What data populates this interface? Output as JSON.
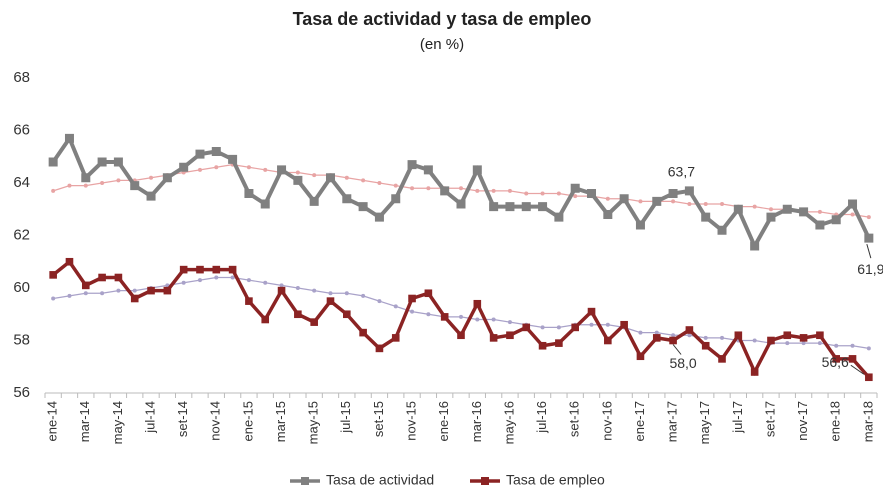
{
  "chart_data": {
    "type": "line",
    "title": "Tasa de actividad y tasa de empleo",
    "subtitle": "(en %)",
    "categories": [
      "ene-14",
      null,
      "mar-14",
      null,
      "may-14",
      null,
      "jul-14",
      null,
      "set-14",
      null,
      "nov-14",
      null,
      "ene-15",
      null,
      "mar-15",
      null,
      "may-15",
      null,
      "jul-15",
      null,
      "set-15",
      null,
      "nov-15",
      null,
      "ene-16",
      null,
      "mar-16",
      null,
      "may-16",
      null,
      "jul-16",
      null,
      "set-16",
      null,
      "nov-16",
      null,
      "ene-17",
      null,
      "mar-17",
      null,
      "may-17",
      null,
      "jul-17",
      null,
      "set-17",
      null,
      "nov-17",
      null,
      "ene-18",
      null,
      "mar-18"
    ],
    "series": [
      {
        "name": "Tasa de actividad",
        "color": "#808080",
        "marker": "square",
        "values": [
          64.8,
          65.7,
          64.2,
          64.8,
          64.8,
          63.9,
          63.5,
          64.2,
          64.6,
          65.1,
          65.2,
          64.9,
          63.6,
          63.2,
          64.5,
          64.1,
          63.3,
          64.2,
          63.4,
          63.1,
          62.7,
          63.4,
          64.7,
          64.5,
          63.7,
          63.2,
          64.5,
          63.1,
          63.1,
          63.1,
          63.1,
          62.7,
          63.8,
          63.6,
          62.8,
          63.4,
          62.4,
          63.3,
          63.6,
          63.7,
          62.7,
          62.2,
          63.0,
          61.6,
          62.7,
          63.0,
          62.9,
          62.4,
          62.6,
          63.2,
          61.9
        ],
        "value_labels": [
          null,
          null,
          null,
          null,
          null,
          null,
          null,
          null,
          null,
          null,
          null,
          null,
          null,
          null,
          null,
          null,
          null,
          null,
          null,
          null,
          null,
          null,
          null,
          null,
          null,
          null,
          null,
          null,
          null,
          null,
          null,
          null,
          null,
          null,
          null,
          null,
          null,
          null,
          null,
          "63,7",
          null,
          null,
          null,
          null,
          null,
          null,
          null,
          null,
          null,
          null,
          "61,9"
        ]
      },
      {
        "name": "Tasa de empleo",
        "color": "#8b2323",
        "marker": "square",
        "values": [
          60.5,
          61.0,
          60.1,
          60.4,
          60.4,
          59.6,
          59.9,
          59.9,
          60.7,
          60.7,
          60.7,
          60.7,
          59.5,
          58.8,
          59.9,
          59.0,
          58.7,
          59.5,
          59.0,
          58.3,
          57.7,
          58.1,
          59.6,
          59.8,
          58.9,
          58.2,
          59.4,
          58.1,
          58.2,
          58.5,
          57.8,
          57.9,
          58.5,
          59.1,
          58.0,
          58.6,
          57.4,
          58.1,
          58.0,
          58.4,
          57.8,
          57.3,
          58.2,
          56.8,
          58.0,
          58.2,
          58.1,
          58.2,
          57.3,
          57.3,
          56.6
        ],
        "value_labels": [
          null,
          null,
          null,
          null,
          null,
          null,
          null,
          null,
          null,
          null,
          null,
          null,
          null,
          null,
          null,
          null,
          null,
          null,
          null,
          null,
          null,
          null,
          null,
          null,
          null,
          null,
          null,
          null,
          null,
          null,
          null,
          null,
          null,
          null,
          null,
          null,
          null,
          null,
          "58,0",
          null,
          null,
          null,
          null,
          null,
          null,
          null,
          null,
          null,
          null,
          null,
          "56,6"
        ]
      },
      {
        "color": "#e8a4a4",
        "marker": "dot",
        "values": [
          63.7,
          63.9,
          63.9,
          64.0,
          64.1,
          64.1,
          64.2,
          64.3,
          64.4,
          64.5,
          64.6,
          64.7,
          64.6,
          64.5,
          64.4,
          64.4,
          64.3,
          64.3,
          64.2,
          64.1,
          64.0,
          63.9,
          63.8,
          63.8,
          63.8,
          63.8,
          63.7,
          63.7,
          63.7,
          63.6,
          63.6,
          63.6,
          63.5,
          63.5,
          63.4,
          63.4,
          63.3,
          63.3,
          63.3,
          63.2,
          63.2,
          63.2,
          63.1,
          63.1,
          63.0,
          63.0,
          62.9,
          62.9,
          62.8,
          62.8,
          62.7
        ]
      },
      {
        "color": "#a9a2c9",
        "marker": "dot",
        "values": [
          59.6,
          59.7,
          59.8,
          59.8,
          59.9,
          59.9,
          60.0,
          60.1,
          60.2,
          60.3,
          60.4,
          60.4,
          60.3,
          60.2,
          60.1,
          60.0,
          59.9,
          59.8,
          59.8,
          59.7,
          59.5,
          59.3,
          59.1,
          59.0,
          58.9,
          58.9,
          58.8,
          58.8,
          58.7,
          58.6,
          58.5,
          58.5,
          58.6,
          58.6,
          58.6,
          58.5,
          58.3,
          58.3,
          58.2,
          58.2,
          58.1,
          58.1,
          58.0,
          58.0,
          57.9,
          57.9,
          57.9,
          57.9,
          57.8,
          57.8,
          57.7
        ]
      }
    ],
    "ylim": [
      56,
      68
    ],
    "yticks": [
      56,
      58,
      60,
      62,
      64,
      66,
      68
    ],
    "grid": false,
    "legend": "bottom"
  }
}
